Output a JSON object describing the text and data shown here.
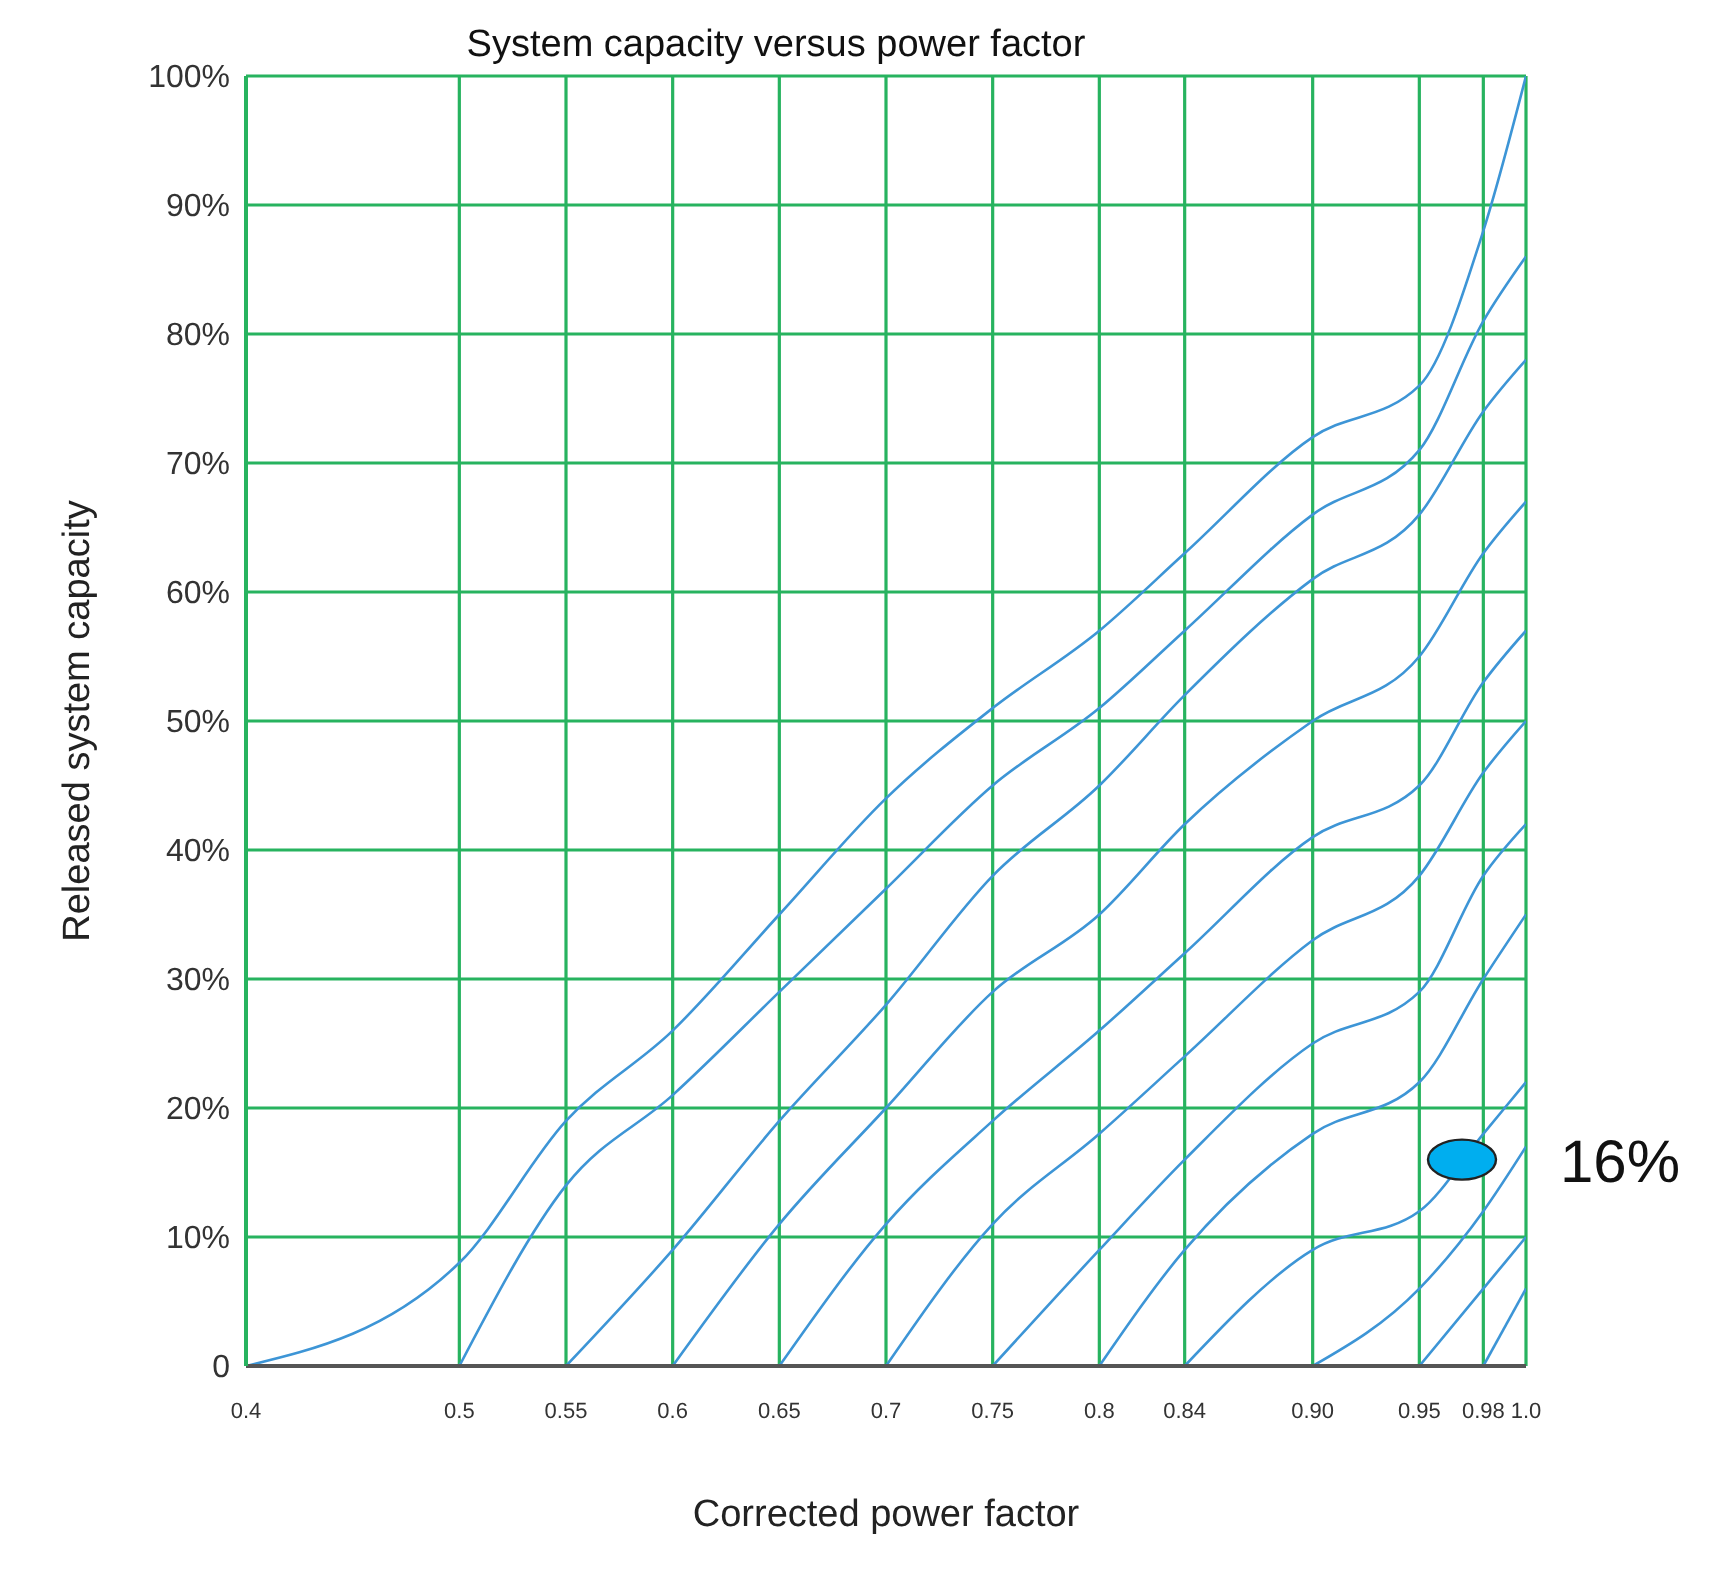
{
  "chart_data": {
    "type": "line",
    "title": "System capacity versus power factor",
    "xlabel": "Corrected power factor",
    "ylabel": "Released system capacity",
    "xlim": [
      0.4,
      1
    ],
    "xticks": [
      0.4,
      0.5,
      0.55,
      0.6,
      0.65,
      0.7,
      0.75,
      0.8,
      0.84,
      {
        "value": 0.9,
        "label": "0.90"
      },
      0.95,
      0.98,
      {
        "value": 1,
        "label": "1.0"
      }
    ],
    "ylim": [
      0,
      100
    ],
    "yticks": [
      {
        "value": 0,
        "label": "0"
      },
      {
        "value": 10,
        "label": "10%"
      },
      {
        "value": 20,
        "label": "20%"
      },
      {
        "value": 30,
        "label": "30%"
      },
      {
        "value": 40,
        "label": "40%"
      },
      {
        "value": 50,
        "label": "50%"
      },
      {
        "value": 60,
        "label": "60%"
      },
      {
        "value": 70,
        "label": "70%"
      },
      {
        "value": 80,
        "label": "80%"
      },
      {
        "value": 90,
        "label": "90%"
      },
      {
        "value": 100,
        "label": "100%"
      }
    ],
    "grid": true,
    "marker": "none",
    "line_style": "solid",
    "series": [
      {
        "color": "#3d95d6",
        "x": [
          0.4,
          0.5,
          0.55,
          0.6,
          0.65,
          0.7,
          0.75,
          0.8,
          0.84,
          0.9,
          0.95,
          0.98,
          1
        ],
        "values": [
          0,
          8,
          19,
          26,
          35,
          44,
          51,
          57,
          63,
          72,
          76,
          88,
          100
        ]
      },
      {
        "color": "#3d95d6",
        "x": [
          0.5,
          0.55,
          0.6,
          0.65,
          0.7,
          0.75,
          0.8,
          0.84,
          0.9,
          0.95,
          0.98,
          1
        ],
        "values": [
          0,
          14,
          21,
          29,
          37,
          45,
          51,
          57,
          66,
          71,
          81,
          86
        ]
      },
      {
        "color": "#3d95d6",
        "x": [
          0.55,
          0.6,
          0.65,
          0.7,
          0.75,
          0.8,
          0.84,
          0.9,
          0.95,
          0.98,
          1
        ],
        "values": [
          0,
          9,
          19,
          28,
          38,
          45,
          52,
          61,
          66,
          74,
          78
        ]
      },
      {
        "color": "#3d95d6",
        "x": [
          0.6,
          0.65,
          0.7,
          0.75,
          0.8,
          0.84,
          0.9,
          0.95,
          0.98,
          1
        ],
        "values": [
          0,
          11,
          20,
          29,
          35,
          42,
          50,
          55,
          63,
          67
        ]
      },
      {
        "color": "#3d95d6",
        "x": [
          0.65,
          0.7,
          0.75,
          0.8,
          0.84,
          0.9,
          0.95,
          0.98,
          1
        ],
        "values": [
          0,
          11,
          19,
          26,
          32,
          41,
          45,
          53,
          57
        ]
      },
      {
        "color": "#3d95d6",
        "x": [
          0.7,
          0.75,
          0.8,
          0.84,
          0.9,
          0.95,
          0.98,
          1
        ],
        "values": [
          0,
          11,
          18,
          24,
          33,
          38,
          46,
          50
        ]
      },
      {
        "color": "#3d95d6",
        "x": [
          0.75,
          0.8,
          0.84,
          0.9,
          0.95,
          0.98,
          1
        ],
        "values": [
          0,
          9,
          16,
          25,
          29,
          38,
          42
        ]
      },
      {
        "color": "#3d95d6",
        "x": [
          0.8,
          0.84,
          0.9,
          0.95,
          0.98,
          1
        ],
        "values": [
          0,
          9,
          18,
          22,
          30,
          35
        ]
      },
      {
        "color": "#3d95d6",
        "x": [
          0.84,
          0.9,
          0.95,
          0.98,
          1
        ],
        "values": [
          0,
          9,
          12,
          18,
          22
        ]
      },
      {
        "color": "#3d95d6",
        "x": [
          0.9,
          0.95,
          0.98,
          1
        ],
        "values": [
          0,
          6,
          12,
          17
        ]
      },
      {
        "color": "#3d95d6",
        "x": [
          0.95,
          0.98,
          1
        ],
        "values": [
          0,
          6,
          10
        ]
      },
      {
        "color": "#3d95d6",
        "x": [
          0.98,
          1
        ],
        "values": [
          0,
          6
        ]
      }
    ],
    "annotations": [
      {
        "text": "16%",
        "x": 0.97,
        "y": 16
      }
    ]
  }
}
